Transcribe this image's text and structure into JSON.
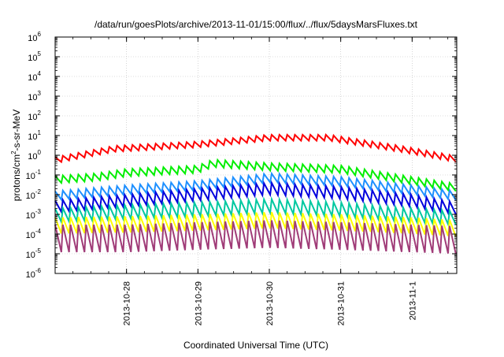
{
  "chart_data": {
    "type": "line",
    "title": "/data/run/goesPlots/archive/2013-11-01/15:00/flux/../flux/5daysMarsFluxes.txt",
    "xlabel": "Coordinated Universal Time (UTC)",
    "ylabel": {
      "prefix": "protons/cm",
      "superscript": "2",
      "suffix": "-s-sr-MeV"
    },
    "yscale": "log",
    "ylim": [
      1e-06,
      1000000.0
    ],
    "xlim": [
      "2013-10-27T00:00",
      "2013-11-01T15:00"
    ],
    "grid": true,
    "x_ticks": [
      {
        "label": "2013-10-28",
        "x": "2013-10-28T00:00"
      },
      {
        "label": "2013-10-29",
        "x": "2013-10-29T00:00"
      },
      {
        "label": "2013-10-30",
        "x": "2013-10-30T00:00"
      },
      {
        "label": "2013-10-31",
        "x": "2013-10-31T00:00"
      },
      {
        "label": "2013-11-1",
        "x": "2013-11-01T00:00"
      }
    ],
    "y_ticks": [
      {
        "base": "10",
        "exp": "-6",
        "value": 1e-06
      },
      {
        "base": "10",
        "exp": "-5",
        "value": 1e-05
      },
      {
        "base": "10",
        "exp": "-4",
        "value": 0.0001
      },
      {
        "base": "10",
        "exp": "-3",
        "value": 0.001
      },
      {
        "base": "10",
        "exp": "-2",
        "value": 0.01
      },
      {
        "base": "10",
        "exp": "-1",
        "value": 0.1
      },
      {
        "base": "10",
        "exp": "0",
        "value": 1
      },
      {
        "base": "10",
        "exp": "1",
        "value": 10
      },
      {
        "base": "10",
        "exp": "2",
        "value": 100
      },
      {
        "base": "10",
        "exp": "3",
        "value": 1000
      },
      {
        "base": "10",
        "exp": "4",
        "value": 10000
      },
      {
        "base": "10",
        "exp": "5",
        "value": 100000
      },
      {
        "base": "10",
        "exp": "6",
        "value": 1000000
      }
    ],
    "series": [
      {
        "color": "#ff0000",
        "peaks": [
          {
            "x": "2013-10-27T00:00",
            "y": 0.8
          },
          {
            "x": "2013-10-27T20:00",
            "y": 3
          },
          {
            "x": "2013-10-29T00:00",
            "y": 5
          },
          {
            "x": "2013-10-30T00:00",
            "y": 11
          },
          {
            "x": "2013-10-30T20:00",
            "y": 11
          },
          {
            "x": "2013-10-31T20:00",
            "y": 3
          },
          {
            "x": "2013-11-01T15:00",
            "y": 0.9
          }
        ],
        "dip_factor": 0.5
      },
      {
        "color": "#00ee00",
        "peaks": [
          {
            "x": "2013-10-27T00:00",
            "y": 0.09
          },
          {
            "x": "2013-10-27T14:00",
            "y": 0.12
          },
          {
            "x": "2013-10-28T00:00",
            "y": 0.2
          },
          {
            "x": "2013-10-29T00:00",
            "y": 0.3
          },
          {
            "x": "2013-10-29T05:00",
            "y": 0.6
          },
          {
            "x": "2013-10-30T00:00",
            "y": 0.4
          },
          {
            "x": "2013-10-31T00:00",
            "y": 0.3
          },
          {
            "x": "2013-11-01T00:00",
            "y": 0.08
          },
          {
            "x": "2013-11-01T15:00",
            "y": 0.035
          }
        ],
        "dip_factor": 0.42
      },
      {
        "color": "#1e90ff",
        "peaks": [
          {
            "x": "2013-10-27T00:00",
            "y": 0.015
          },
          {
            "x": "2013-10-28T00:00",
            "y": 0.03
          },
          {
            "x": "2013-10-29T00:00",
            "y": 0.05
          },
          {
            "x": "2013-10-30T00:00",
            "y": 0.12
          },
          {
            "x": "2013-10-31T00:00",
            "y": 0.08
          },
          {
            "x": "2013-11-01T00:00",
            "y": 0.03
          },
          {
            "x": "2013-11-01T15:00",
            "y": 0.015
          }
        ],
        "dip_factor": 0.35
      },
      {
        "color": "#0000dd",
        "peaks": [
          {
            "x": "2013-10-27T00:00",
            "y": 0.005
          },
          {
            "x": "2013-10-28T00:00",
            "y": 0.01
          },
          {
            "x": "2013-10-29T00:00",
            "y": 0.02
          },
          {
            "x": "2013-10-30T00:00",
            "y": 0.04
          },
          {
            "x": "2013-10-31T00:00",
            "y": 0.025
          },
          {
            "x": "2013-11-01T00:00",
            "y": 0.01
          },
          {
            "x": "2013-11-01T15:00",
            "y": 0.004
          }
        ],
        "dip_factor": 0.25
      },
      {
        "color": "#00c8a0",
        "peaks": [
          {
            "x": "2013-10-27T00:00",
            "y": 0.002
          },
          {
            "x": "2013-10-28T00:00",
            "y": 0.003
          },
          {
            "x": "2013-10-29T00:00",
            "y": 0.004
          },
          {
            "x": "2013-10-30T00:00",
            "y": 0.006
          },
          {
            "x": "2013-10-31T00:00",
            "y": 0.004
          },
          {
            "x": "2013-11-01T00:00",
            "y": 0.002
          },
          {
            "x": "2013-11-01T15:00",
            "y": 0.0015
          }
        ],
        "dip_factor": 0.2
      },
      {
        "color": "#ffff00",
        "peaks": [
          {
            "x": "2013-10-27T00:00",
            "y": 0.0007
          },
          {
            "x": "2013-10-28T00:00",
            "y": 0.0008
          },
          {
            "x": "2013-10-29T00:00",
            "y": 0.001
          },
          {
            "x": "2013-10-30T00:00",
            "y": 0.0013
          },
          {
            "x": "2013-10-31T00:00",
            "y": 0.001
          },
          {
            "x": "2013-11-01T00:00",
            "y": 0.0007
          },
          {
            "x": "2013-11-01T15:00",
            "y": 0.0005
          }
        ],
        "dip_factor": 0.15
      },
      {
        "color": "#a03c78",
        "peaks": [
          {
            "x": "2013-10-27T00:00",
            "y": 0.0003
          },
          {
            "x": "2013-10-28T00:00",
            "y": 0.0003
          },
          {
            "x": "2013-10-29T00:00",
            "y": 0.0004
          },
          {
            "x": "2013-10-30T00:00",
            "y": 0.0005
          },
          {
            "x": "2013-10-31T00:00",
            "y": 0.0004
          },
          {
            "x": "2013-11-01T00:00",
            "y": 0.0003
          },
          {
            "x": "2013-11-01T15:00",
            "y": 0.00025
          }
        ],
        "dip_factor": 0.04
      }
    ],
    "sawtooth_period_hours": 2.6
  }
}
